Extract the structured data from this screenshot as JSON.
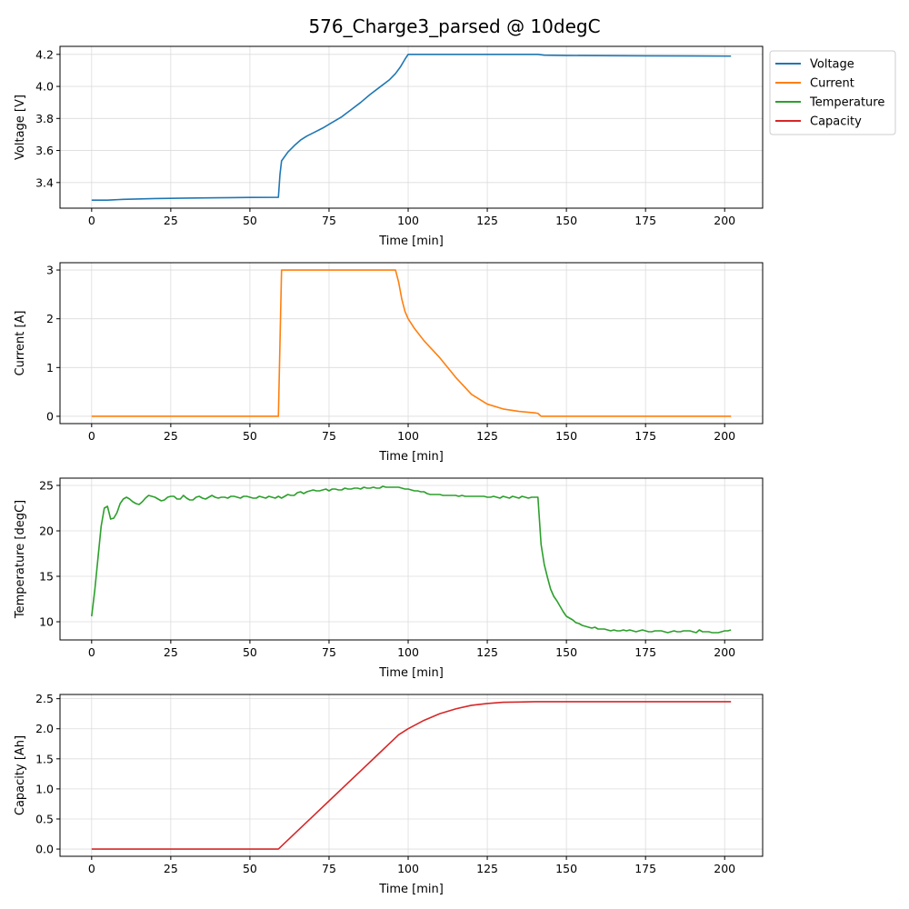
{
  "title": "576_Charge3_parsed @ 10degC",
  "legend": {
    "placement": "outside-top-right",
    "entries": [
      {
        "label": "Voltage",
        "color": "#1f77b4"
      },
      {
        "label": "Current",
        "color": "#ff7f0e"
      },
      {
        "label": "Temperature",
        "color": "#2ca02c"
      },
      {
        "label": "Capacity",
        "color": "#d62728"
      }
    ]
  },
  "chart_data": [
    {
      "type": "line",
      "name": "Voltage",
      "xlabel": "Time [min]",
      "ylabel": "Voltage [V]",
      "color": "#1f77b4",
      "grid": true,
      "xlim": [
        -10,
        212
      ],
      "ylim": [
        3.24,
        4.25
      ],
      "xticks": [
        0,
        25,
        50,
        75,
        100,
        125,
        150,
        175,
        200
      ],
      "yticks": [
        3.4,
        3.6,
        3.8,
        4.0,
        4.2
      ],
      "ytick_labels": [
        "3.4",
        "3.6",
        "3.8",
        "4.0",
        "4.2"
      ],
      "points": [
        [
          0,
          3.29
        ],
        [
          5,
          3.29
        ],
        [
          10,
          3.295
        ],
        [
          20,
          3.3
        ],
        [
          30,
          3.303
        ],
        [
          40,
          3.305
        ],
        [
          50,
          3.307
        ],
        [
          59,
          3.308
        ],
        [
          59.5,
          3.45
        ],
        [
          60,
          3.535
        ],
        [
          62,
          3.59
        ],
        [
          64,
          3.63
        ],
        [
          66,
          3.665
        ],
        [
          68,
          3.69
        ],
        [
          70,
          3.71
        ],
        [
          73,
          3.74
        ],
        [
          76,
          3.775
        ],
        [
          79,
          3.81
        ],
        [
          82,
          3.855
        ],
        [
          85,
          3.9
        ],
        [
          88,
          3.95
        ],
        [
          91,
          3.995
        ],
        [
          94,
          4.04
        ],
        [
          96,
          4.08
        ],
        [
          97.5,
          4.12
        ],
        [
          99,
          4.17
        ],
        [
          100,
          4.2
        ],
        [
          102,
          4.2
        ],
        [
          110,
          4.2
        ],
        [
          120,
          4.2
        ],
        [
          130,
          4.2
        ],
        [
          141,
          4.2
        ],
        [
          143,
          4.195
        ],
        [
          150,
          4.193
        ],
        [
          160,
          4.192
        ],
        [
          175,
          4.191
        ],
        [
          190,
          4.19
        ],
        [
          202,
          4.189
        ]
      ]
    },
    {
      "type": "line",
      "name": "Current",
      "xlabel": "Time [min]",
      "ylabel": "Current [A]",
      "color": "#ff7f0e",
      "grid": true,
      "xlim": [
        -10,
        212
      ],
      "ylim": [
        -0.15,
        3.15
      ],
      "xticks": [
        0,
        25,
        50,
        75,
        100,
        125,
        150,
        175,
        200
      ],
      "yticks": [
        0,
        1,
        2,
        3
      ],
      "ytick_labels": [
        "0",
        "1",
        "2",
        "3"
      ],
      "points": [
        [
          0,
          0
        ],
        [
          59,
          0
        ],
        [
          60,
          3.0
        ],
        [
          61,
          3.0
        ],
        [
          96,
          3.0
        ],
        [
          97,
          2.75
        ],
        [
          98,
          2.4
        ],
        [
          99,
          2.15
        ],
        [
          100,
          2.0
        ],
        [
          102,
          1.8
        ],
        [
          105,
          1.55
        ],
        [
          110,
          1.2
        ],
        [
          115,
          0.8
        ],
        [
          120,
          0.45
        ],
        [
          125,
          0.25
        ],
        [
          130,
          0.15
        ],
        [
          135,
          0.1
        ],
        [
          140,
          0.07
        ],
        [
          141,
          0.06
        ],
        [
          142,
          0.0
        ],
        [
          150,
          0
        ],
        [
          175,
          0
        ],
        [
          202,
          0
        ]
      ]
    },
    {
      "type": "line",
      "name": "Temperature",
      "xlabel": "Time [min]",
      "ylabel": "Temperature [degC]",
      "color": "#2ca02c",
      "grid": true,
      "xlim": [
        -10,
        212
      ],
      "ylim": [
        8.0,
        25.8
      ],
      "xticks": [
        0,
        25,
        50,
        75,
        100,
        125,
        150,
        175,
        200
      ],
      "yticks": [
        10,
        15,
        20,
        25
      ],
      "ytick_labels": [
        "10",
        "15",
        "20",
        "25"
      ],
      "points": [
        [
          0,
          10.6
        ],
        [
          1,
          13.5
        ],
        [
          2,
          17.0
        ],
        [
          3,
          20.5
        ],
        [
          4,
          22.5
        ],
        [
          5,
          22.7
        ],
        [
          6,
          21.3
        ],
        [
          7,
          21.4
        ],
        [
          8,
          22.0
        ],
        [
          9,
          23.0
        ],
        [
          10,
          23.5
        ],
        [
          11,
          23.7
        ],
        [
          12,
          23.5
        ],
        [
          13,
          23.2
        ],
        [
          14,
          23.0
        ],
        [
          15,
          22.9
        ],
        [
          16,
          23.2
        ],
        [
          17,
          23.6
        ],
        [
          18,
          23.9
        ],
        [
          19,
          23.8
        ],
        [
          20,
          23.7
        ],
        [
          21,
          23.5
        ],
        [
          22,
          23.3
        ],
        [
          23,
          23.4
        ],
        [
          24,
          23.7
        ],
        [
          25,
          23.8
        ],
        [
          26,
          23.8
        ],
        [
          27,
          23.5
        ],
        [
          28,
          23.5
        ],
        [
          29,
          23.9
        ],
        [
          30,
          23.6
        ],
        [
          31,
          23.4
        ],
        [
          32,
          23.4
        ],
        [
          33,
          23.7
        ],
        [
          34,
          23.8
        ],
        [
          35,
          23.6
        ],
        [
          36,
          23.5
        ],
        [
          37,
          23.7
        ],
        [
          38,
          23.9
        ],
        [
          39,
          23.7
        ],
        [
          40,
          23.6
        ],
        [
          41,
          23.7
        ],
        [
          42,
          23.7
        ],
        [
          43,
          23.6
        ],
        [
          44,
          23.8
        ],
        [
          45,
          23.8
        ],
        [
          46,
          23.7
        ],
        [
          47,
          23.6
        ],
        [
          48,
          23.8
        ],
        [
          49,
          23.8
        ],
        [
          50,
          23.7
        ],
        [
          51,
          23.6
        ],
        [
          52,
          23.6
        ],
        [
          53,
          23.8
        ],
        [
          54,
          23.7
        ],
        [
          55,
          23.6
        ],
        [
          56,
          23.8
        ],
        [
          57,
          23.7
        ],
        [
          58,
          23.6
        ],
        [
          59,
          23.8
        ],
        [
          60,
          23.6
        ],
        [
          61,
          23.8
        ],
        [
          62,
          24.0
        ],
        [
          63,
          23.9
        ],
        [
          64,
          23.9
        ],
        [
          65,
          24.2
        ],
        [
          66,
          24.3
        ],
        [
          67,
          24.1
        ],
        [
          68,
          24.3
        ],
        [
          69,
          24.4
        ],
        [
          70,
          24.5
        ],
        [
          71,
          24.4
        ],
        [
          72,
          24.4
        ],
        [
          73,
          24.5
        ],
        [
          74,
          24.6
        ],
        [
          75,
          24.4
        ],
        [
          76,
          24.6
        ],
        [
          77,
          24.6
        ],
        [
          78,
          24.5
        ],
        [
          79,
          24.5
        ],
        [
          80,
          24.7
        ],
        [
          81,
          24.6
        ],
        [
          82,
          24.6
        ],
        [
          83,
          24.7
        ],
        [
          84,
          24.7
        ],
        [
          85,
          24.6
        ],
        [
          86,
          24.8
        ],
        [
          87,
          24.7
        ],
        [
          88,
          24.7
        ],
        [
          89,
          24.8
        ],
        [
          90,
          24.7
        ],
        [
          91,
          24.7
        ],
        [
          92,
          24.9
        ],
        [
          93,
          24.8
        ],
        [
          94,
          24.8
        ],
        [
          95,
          24.8
        ],
        [
          96,
          24.8
        ],
        [
          97,
          24.8
        ],
        [
          98,
          24.7
        ],
        [
          99,
          24.6
        ],
        [
          100,
          24.6
        ],
        [
          101,
          24.5
        ],
        [
          102,
          24.4
        ],
        [
          103,
          24.4
        ],
        [
          104,
          24.3
        ],
        [
          105,
          24.3
        ],
        [
          106,
          24.1
        ],
        [
          107,
          24.0
        ],
        [
          108,
          24.0
        ],
        [
          109,
          24.0
        ],
        [
          110,
          24.0
        ],
        [
          111,
          23.9
        ],
        [
          112,
          23.9
        ],
        [
          113,
          23.9
        ],
        [
          114,
          23.9
        ],
        [
          115,
          23.9
        ],
        [
          116,
          23.8
        ],
        [
          117,
          23.9
        ],
        [
          118,
          23.8
        ],
        [
          119,
          23.8
        ],
        [
          120,
          23.8
        ],
        [
          121,
          23.8
        ],
        [
          122,
          23.8
        ],
        [
          123,
          23.8
        ],
        [
          124,
          23.8
        ],
        [
          125,
          23.7
        ],
        [
          126,
          23.7
        ],
        [
          127,
          23.8
        ],
        [
          128,
          23.7
        ],
        [
          129,
          23.6
        ],
        [
          130,
          23.8
        ],
        [
          131,
          23.7
        ],
        [
          132,
          23.6
        ],
        [
          133,
          23.8
        ],
        [
          134,
          23.7
        ],
        [
          135,
          23.6
        ],
        [
          136,
          23.8
        ],
        [
          137,
          23.7
        ],
        [
          138,
          23.6
        ],
        [
          139,
          23.7
        ],
        [
          140,
          23.7
        ],
        [
          141,
          23.7
        ],
        [
          142,
          18.5
        ],
        [
          143,
          16.3
        ],
        [
          144,
          14.9
        ],
        [
          145,
          13.6
        ],
        [
          146,
          12.8
        ],
        [
          147,
          12.3
        ],
        [
          148,
          11.7
        ],
        [
          149,
          11.1
        ],
        [
          150,
          10.6
        ],
        [
          151,
          10.4
        ],
        [
          152,
          10.2
        ],
        [
          153,
          9.9
        ],
        [
          154,
          9.8
        ],
        [
          155,
          9.6
        ],
        [
          156,
          9.5
        ],
        [
          157,
          9.4
        ],
        [
          158,
          9.3
        ],
        [
          159,
          9.4
        ],
        [
          160,
          9.2
        ],
        [
          161,
          9.2
        ],
        [
          162,
          9.2
        ],
        [
          163,
          9.1
        ],
        [
          164,
          9.0
        ],
        [
          165,
          9.1
        ],
        [
          166,
          9.0
        ],
        [
          167,
          9.0
        ],
        [
          168,
          9.1
        ],
        [
          169,
          9.0
        ],
        [
          170,
          9.1
        ],
        [
          171,
          9.0
        ],
        [
          172,
          8.9
        ],
        [
          173,
          9.0
        ],
        [
          174,
          9.1
        ],
        [
          175,
          9.0
        ],
        [
          176,
          8.9
        ],
        [
          177,
          8.9
        ],
        [
          178,
          9.0
        ],
        [
          179,
          9.0
        ],
        [
          180,
          9.0
        ],
        [
          181,
          8.9
        ],
        [
          182,
          8.8
        ],
        [
          183,
          8.9
        ],
        [
          184,
          9.0
        ],
        [
          185,
          8.9
        ],
        [
          186,
          8.9
        ],
        [
          187,
          9.0
        ],
        [
          188,
          9.0
        ],
        [
          189,
          9.0
        ],
        [
          190,
          8.9
        ],
        [
          191,
          8.8
        ],
        [
          192,
          9.1
        ],
        [
          193,
          8.9
        ],
        [
          194,
          8.9
        ],
        [
          195,
          8.9
        ],
        [
          196,
          8.8
        ],
        [
          197,
          8.8
        ],
        [
          198,
          8.8
        ],
        [
          199,
          8.9
        ],
        [
          200,
          9.0
        ],
        [
          201,
          9.0
        ],
        [
          202,
          9.1
        ]
      ]
    },
    {
      "type": "line",
      "name": "Capacity",
      "xlabel": "Time [min]",
      "ylabel": "Capacity [Ah]",
      "color": "#d62728",
      "grid": true,
      "xlim": [
        -10,
        212
      ],
      "ylim": [
        -0.12,
        2.57
      ],
      "xticks": [
        0,
        25,
        50,
        75,
        100,
        125,
        150,
        175,
        200
      ],
      "yticks": [
        0.0,
        0.5,
        1.0,
        1.5,
        2.0,
        2.5
      ],
      "ytick_labels": [
        "0.0",
        "0.5",
        "1.0",
        "1.5",
        "2.0",
        "2.5"
      ],
      "points": [
        [
          0,
          0
        ],
        [
          59,
          0
        ],
        [
          65,
          0.3
        ],
        [
          70,
          0.55
        ],
        [
          75,
          0.8
        ],
        [
          80,
          1.05
        ],
        [
          85,
          1.3
        ],
        [
          90,
          1.55
        ],
        [
          95,
          1.8
        ],
        [
          97,
          1.9
        ],
        [
          100,
          2.0
        ],
        [
          105,
          2.14
        ],
        [
          110,
          2.25
        ],
        [
          115,
          2.33
        ],
        [
          120,
          2.39
        ],
        [
          125,
          2.42
        ],
        [
          130,
          2.44
        ],
        [
          135,
          2.445
        ],
        [
          140,
          2.45
        ],
        [
          150,
          2.45
        ],
        [
          175,
          2.45
        ],
        [
          202,
          2.45
        ]
      ]
    }
  ]
}
